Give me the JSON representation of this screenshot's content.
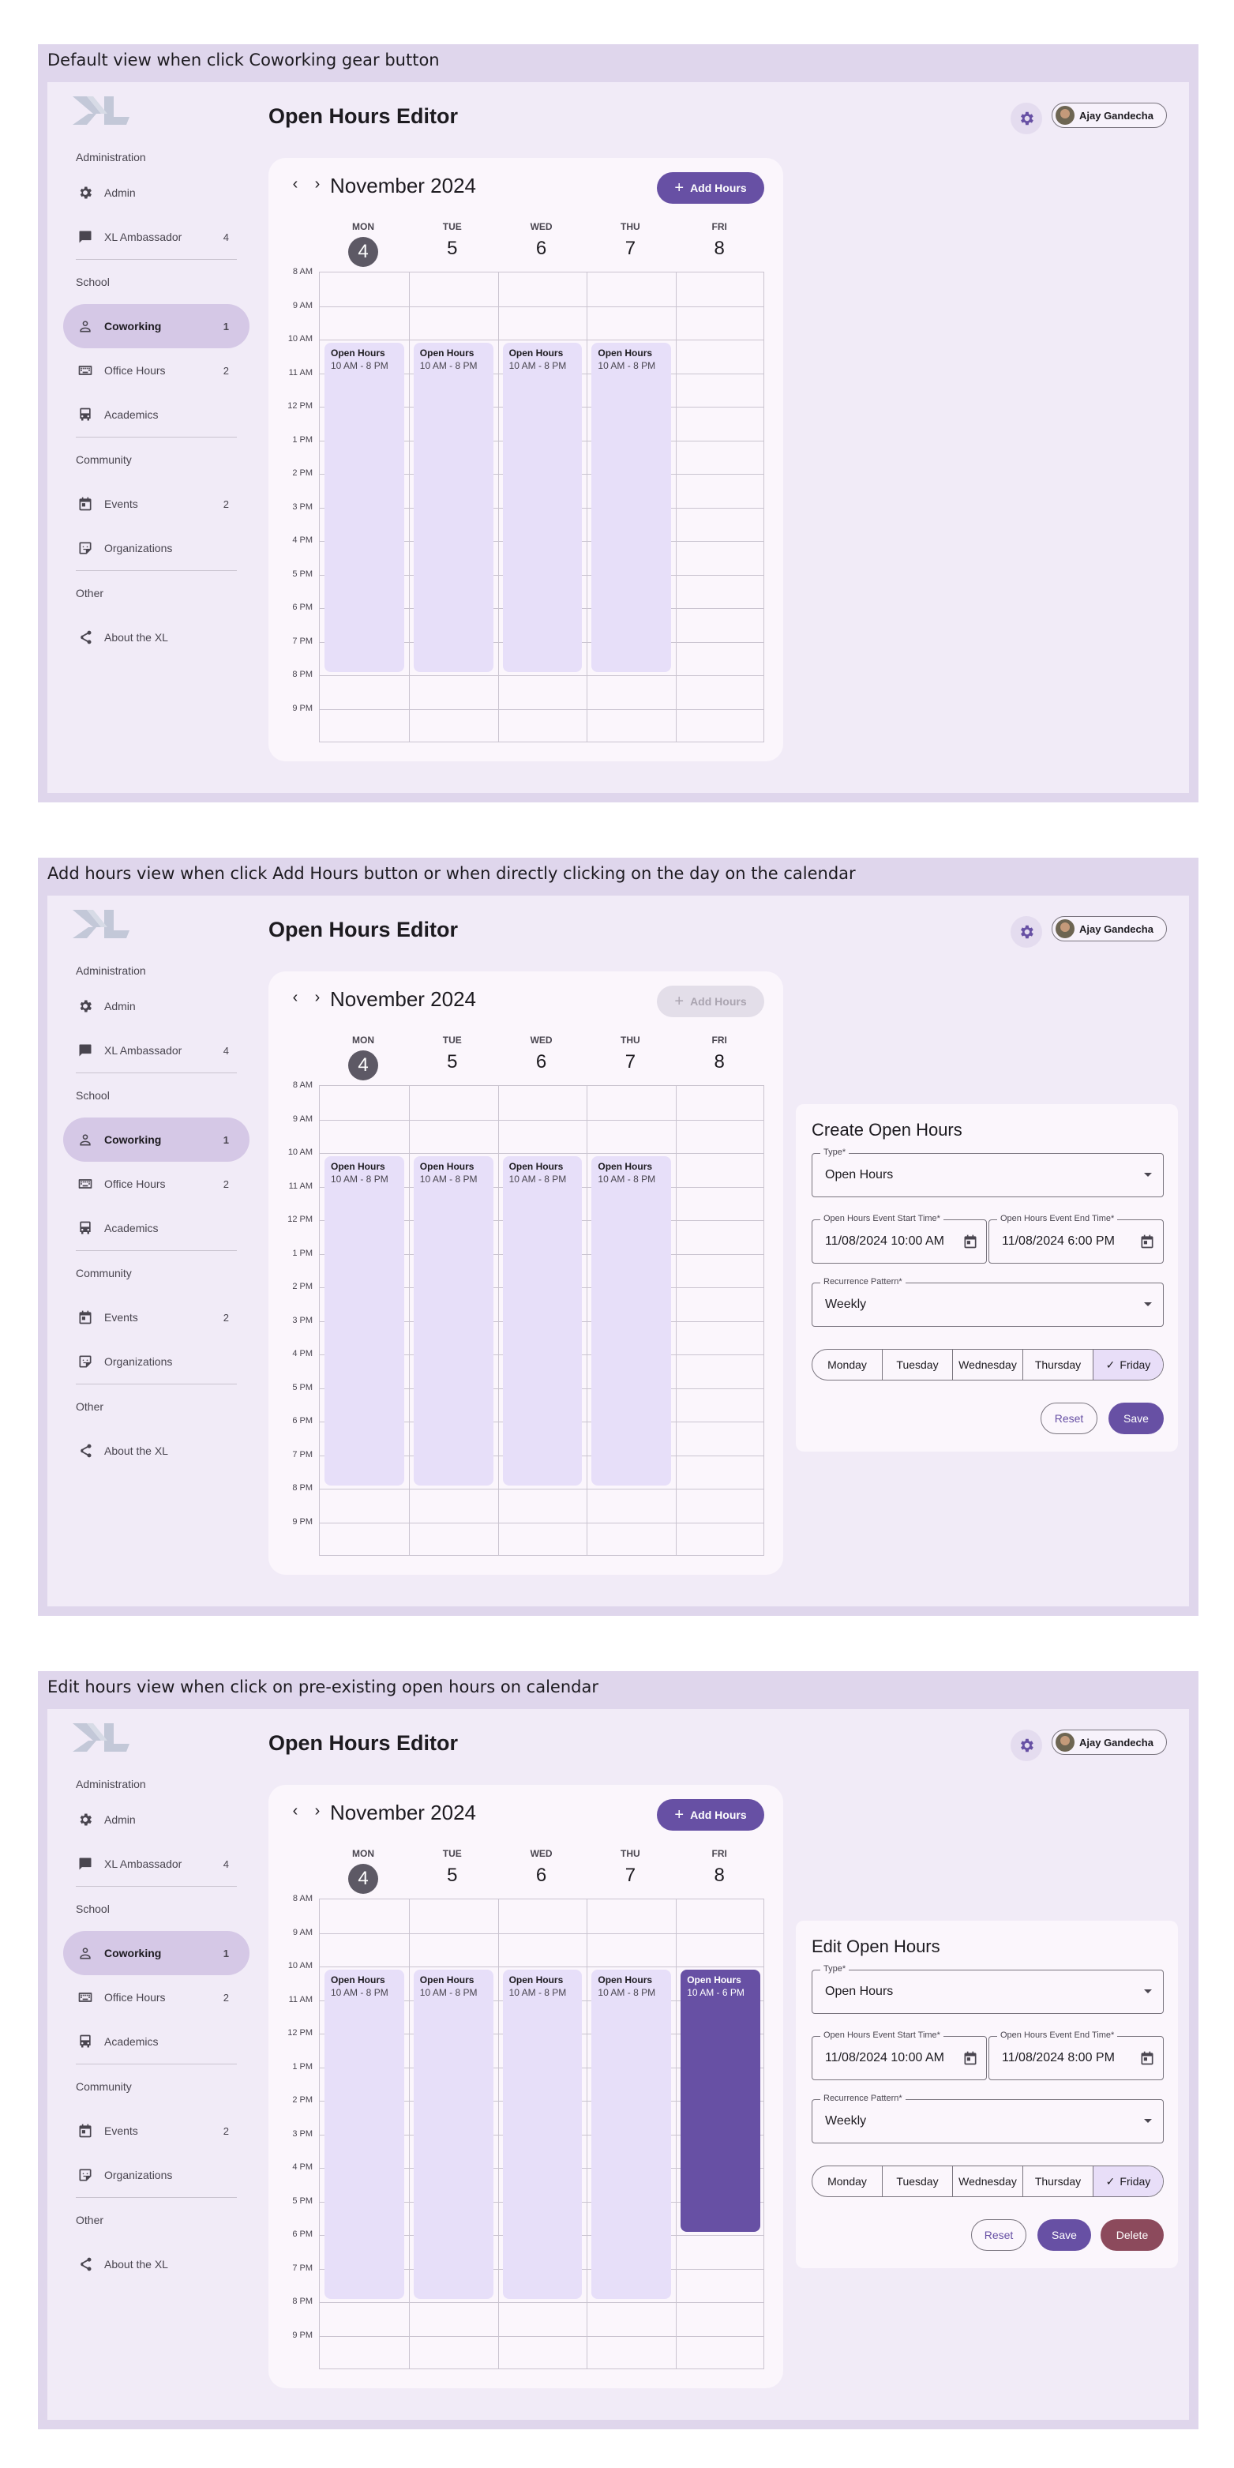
{
  "nav": {
    "sections": [
      "Administration",
      "School",
      "Community",
      "Other"
    ],
    "items": [
      {
        "label": "Admin",
        "badge": "",
        "icon": "gear-icon"
      },
      {
        "label": "XL Ambassador",
        "badge": "4",
        "icon": "chat-icon"
      },
      {
        "label": "Coworking",
        "badge": "1",
        "icon": "person-icon"
      },
      {
        "label": "Office Hours",
        "badge": "2",
        "icon": "keyboard-icon"
      },
      {
        "label": "Academics",
        "badge": "",
        "icon": "bus-icon"
      },
      {
        "label": "Events",
        "badge": "2",
        "icon": "calendar-icon"
      },
      {
        "label": "Organizations",
        "badge": "",
        "icon": "sticker-icon"
      },
      {
        "label": "About the XL",
        "badge": "",
        "icon": "share-icon"
      }
    ]
  },
  "header": {
    "title": "Open Hours Editor",
    "user_name": "Ajay Gandecha"
  },
  "calendar": {
    "month": "November 2024",
    "add_label": "Add Hours",
    "days": [
      {
        "name": "MON",
        "num": "4"
      },
      {
        "name": "TUE",
        "num": "5"
      },
      {
        "name": "WED",
        "num": "6"
      },
      {
        "name": "THU",
        "num": "7"
      },
      {
        "name": "FRI",
        "num": "8"
      }
    ],
    "times": [
      "8 AM",
      "9 AM",
      "10 AM",
      "11 AM",
      "12 PM",
      "1 PM",
      "2 PM",
      "3 PM",
      "4 PM",
      "5 PM",
      "6 PM",
      "7 PM",
      "8 PM",
      "9 PM"
    ],
    "event_title": "Open Hours",
    "event_time": "10 AM - 8 PM",
    "friday_event_time": "10 AM - 6 PM"
  },
  "panels": [
    {
      "caption": "Default view when click Coworking gear button"
    },
    {
      "caption": "Add hours view when click Add Hours button or when directly clicking on the day on the calendar"
    },
    {
      "caption": "Edit hours view when click on pre-existing open hours on calendar"
    }
  ],
  "forms": {
    "create": {
      "title": "Create Open Hours",
      "type_label": "Type*",
      "type_value": "Open Hours",
      "start_label": "Open Hours Event Start Time*",
      "start_value": "11/08/2024  10:00 AM",
      "end_label": "Open Hours Event End Time*",
      "end_value": "11/08/2024  6:00 PM",
      "recurrence_label": "Recurrence Pattern*",
      "recurrence_value": "Weekly",
      "reset_label": "Reset",
      "save_label": "Save"
    },
    "edit": {
      "title": "Edit Open Hours",
      "type_label": "Type*",
      "type_value": "Open Hours",
      "start_label": "Open Hours Event Start Time*",
      "start_value": "11/08/2024  10:00 AM",
      "end_label": "Open Hours Event End Time*",
      "end_value": "11/08/2024  8:00 PM",
      "recurrence_label": "Recurrence Pattern*",
      "recurrence_value": "Weekly",
      "reset_label": "Reset",
      "save_label": "Save",
      "delete_label": "Delete"
    },
    "weekdays": [
      "Monday",
      "Tuesday",
      "Wednesday",
      "Thursday",
      "Friday"
    ],
    "selected_weekday": "Friday"
  },
  "colors": {
    "primary": "#6750a4",
    "panel_bg": "#dfd6ec",
    "app_bg": "#f1ebf7",
    "event_bg": "#e7dff9",
    "delete": "#8c4a5c"
  }
}
